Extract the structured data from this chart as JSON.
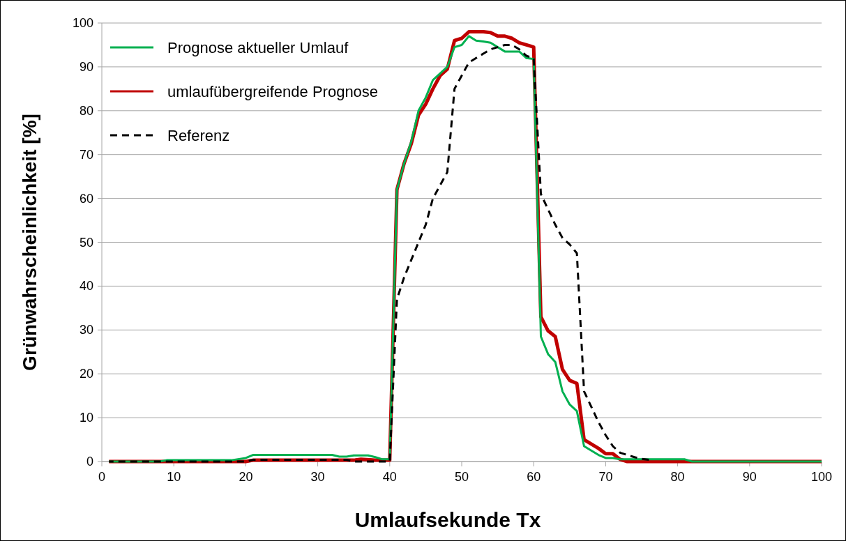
{
  "chart_data": {
    "type": "line",
    "xlabel": "Umlaufsekunde Tx",
    "ylabel": "Grünwahrscheinlichkeit [%]",
    "xlim": [
      0,
      100
    ],
    "ylim": [
      0,
      100
    ],
    "xticks": [
      0,
      10,
      20,
      30,
      40,
      50,
      60,
      70,
      80,
      90,
      100
    ],
    "yticks": [
      0,
      10,
      20,
      30,
      40,
      50,
      60,
      70,
      80,
      90,
      100
    ],
    "grid": "y",
    "legend": "top left",
    "marker": "none",
    "series": [
      {
        "name": "Prognose aktueller Umlauf",
        "color": "#00b050",
        "line_style": "solid",
        "x": [
          1,
          8,
          9,
          18,
          20,
          21,
          32,
          33,
          34,
          35,
          37,
          38,
          39,
          40,
          41,
          42,
          43,
          44,
          45,
          46,
          47,
          48,
          49,
          50,
          51,
          52,
          53,
          54,
          55,
          56,
          57,
          58,
          59,
          60,
          61,
          62,
          63,
          64,
          65,
          66,
          67,
          68,
          69,
          70,
          71,
          72,
          80,
          81,
          82,
          100
        ],
        "values": [
          0,
          0,
          0.3,
          0.3,
          0.8,
          1.5,
          1.5,
          1.1,
          1.1,
          1.4,
          1.4,
          1.0,
          0.5,
          0.5,
          62,
          68,
          73,
          80,
          83,
          87,
          88.5,
          90,
          94.5,
          95,
          97,
          96,
          95.8,
          95.5,
          94.5,
          93.5,
          93.5,
          93.5,
          92,
          91.8,
          28.5,
          24.5,
          22.7,
          16,
          13,
          11.5,
          3.5,
          2.5,
          1.5,
          0.8,
          0.8,
          0.5,
          0.5,
          0.5,
          0,
          0
        ]
      },
      {
        "name": "umlaufübergreifende Prognose",
        "color": "#c00000",
        "line_style": "solid",
        "x": [
          1,
          20,
          21,
          35,
          36,
          38,
          40,
          41,
          42,
          43,
          44,
          45,
          46,
          47,
          48,
          49,
          50,
          51,
          52,
          53,
          54,
          55,
          56,
          57,
          58,
          59,
          60,
          61,
          62,
          63,
          64,
          65,
          66,
          67,
          68,
          69,
          70,
          71,
          72,
          73,
          100
        ],
        "values": [
          0,
          0,
          0.3,
          0.3,
          0.5,
          0.3,
          0.3,
          62,
          68,
          72.5,
          79,
          81.5,
          85,
          88,
          89.5,
          96,
          96.5,
          98,
          98,
          98,
          97.8,
          97,
          97,
          96.5,
          95.5,
          95,
          94.5,
          33,
          29.8,
          28.5,
          21,
          18.5,
          17.8,
          5,
          4,
          3,
          1.8,
          1.8,
          0.5,
          0,
          0
        ]
      },
      {
        "name": "Referenz",
        "color": "#000000",
        "line_style": "dashed",
        "x": [
          1,
          20,
          21,
          34,
          35,
          40,
          41,
          42,
          43,
          44,
          45,
          46,
          47,
          48,
          49,
          50,
          51,
          52,
          53,
          54,
          55,
          56,
          57,
          58,
          59,
          60,
          61,
          62,
          63,
          64,
          65,
          66,
          67,
          68,
          69,
          70,
          71,
          72,
          73,
          74,
          75,
          76
        ],
        "values": [
          0,
          0,
          0.4,
          0.4,
          0,
          0,
          37,
          42,
          46,
          50,
          54,
          60,
          63,
          66,
          85,
          88,
          91,
          92,
          93,
          94,
          94.5,
          95,
          95,
          94,
          92.5,
          92,
          61,
          57.5,
          54,
          51,
          49.5,
          47.5,
          16,
          12.5,
          9,
          6,
          3.5,
          2,
          1.5,
          1,
          0.6,
          0.4
        ]
      }
    ]
  }
}
